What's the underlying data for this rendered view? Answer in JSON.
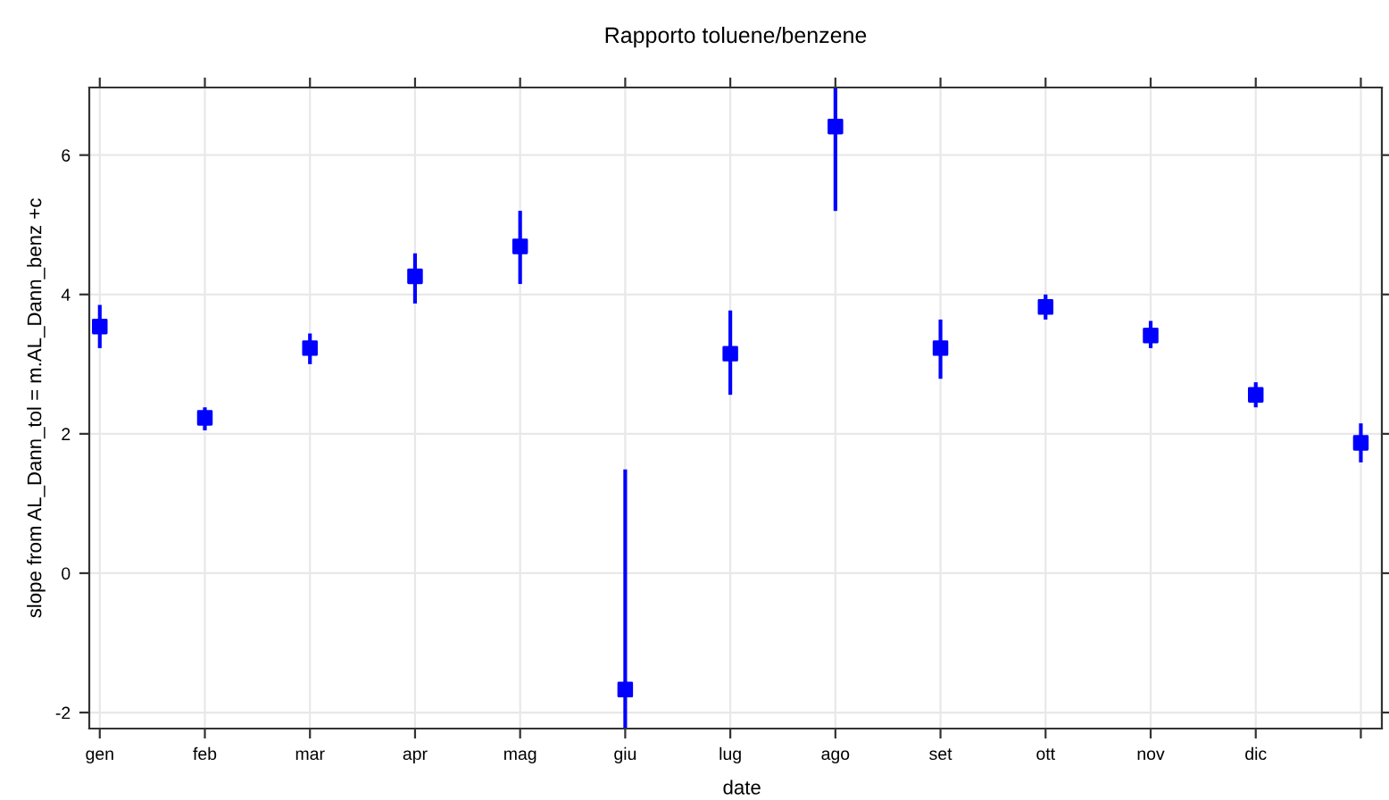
{
  "chart_data": {
    "type": "scatter",
    "title": "Rapporto toluene/benzene",
    "xlabel": "date",
    "ylabel": "slope from AL_Dann_tol = m.AL_Dann_benz +c",
    "categories": [
      "gen",
      "feb",
      "mar",
      "apr",
      "mag",
      "giu",
      "lug",
      "ago",
      "set",
      "ott",
      "nov",
      "dic",
      null
    ],
    "series": [
      {
        "color": "#0000ff",
        "values": [
          3.54,
          2.23,
          3.23,
          4.26,
          4.69,
          -1.67,
          3.15,
          6.41,
          3.23,
          3.82,
          3.41,
          2.56,
          1.87
        ],
        "errors": [
          [
            3.23,
            3.85
          ],
          [
            2.05,
            2.38
          ],
          [
            3.0,
            3.44
          ],
          [
            3.87,
            4.59
          ],
          [
            4.15,
            5.2
          ],
          [
            -2.23,
            1.49
          ],
          [
            2.56,
            3.77
          ],
          [
            5.2,
            6.97
          ],
          [
            2.79,
            3.64
          ],
          [
            3.64,
            4.0
          ],
          [
            3.23,
            3.62
          ],
          [
            2.38,
            2.74
          ],
          [
            1.59,
            2.15
          ]
        ]
      }
    ],
    "ylim": [
      -2.23,
      6.97
    ],
    "yticks": [
      -2,
      0,
      2,
      4,
      6
    ],
    "grid": true,
    "marker": "square"
  }
}
